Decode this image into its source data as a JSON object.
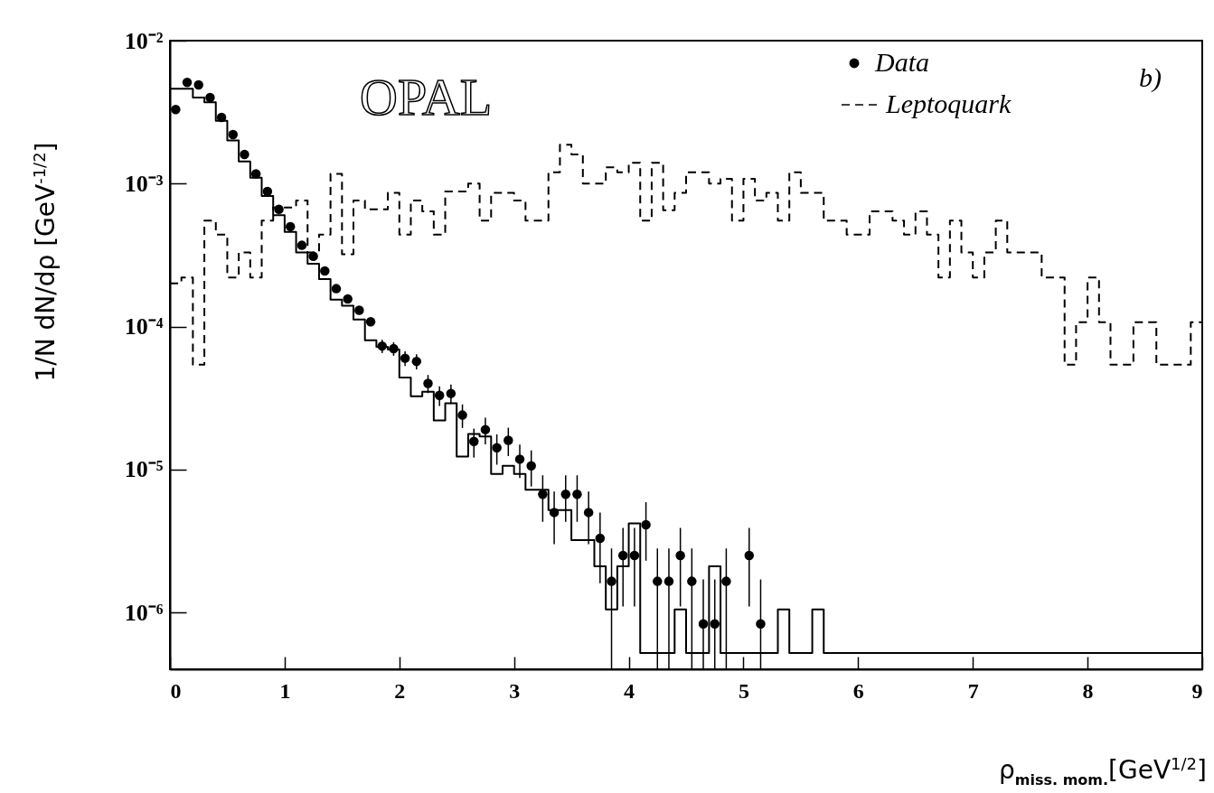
{
  "chart_data": {
    "type": "step",
    "xlabel": "ρ$_{miss. mom.}$[GeV$^{1/2}$]",
    "ylabel": "1/N dN/dρ  [GeV$^{-1/2}$]",
    "annotations": [
      "OPAL",
      "b)"
    ],
    "xlim": [
      0,
      9
    ],
    "xticks": [
      0,
      1,
      2,
      3,
      4,
      5,
      6,
      7,
      8,
      9
    ],
    "ylim": [
      4e-07,
      0.01
    ],
    "yticks": [
      {
        "value": 1e-06,
        "label": "10⁻⁶"
      },
      {
        "value": 1e-05,
        "label": "10⁻⁵"
      },
      {
        "value": 0.0001,
        "label": "10⁻⁴"
      },
      {
        "value": 0.001,
        "label": "10⁻³"
      },
      {
        "value": 0.01,
        "label": "10⁻²"
      }
    ],
    "log": true,
    "grid": false,
    "legend": "top right",
    "series": [
      {
        "name": "Data",
        "type": "scatter",
        "color": "#000000",
        "marker": "circle",
        "x": [
          0.05,
          0.15,
          0.25,
          0.35,
          0.45,
          0.55,
          0.65,
          0.75,
          0.85,
          0.95,
          1.05,
          1.15,
          1.25,
          1.35,
          1.45,
          1.55,
          1.65,
          1.75,
          1.85,
          1.95,
          2.05,
          2.15,
          2.25,
          2.35,
          2.45,
          2.55,
          2.65,
          2.75,
          2.85,
          2.95,
          3.05,
          3.15,
          3.25,
          3.35,
          3.45,
          3.55,
          3.65,
          3.75,
          3.85,
          3.95,
          4.05,
          4.15,
          4.25,
          4.35,
          4.45,
          4.55,
          4.65,
          4.75,
          4.85,
          5.05,
          5.15
        ],
        "values": [
          0.0033,
          0.0051,
          0.0049,
          0.004,
          0.0029,
          0.0022,
          0.0016,
          0.00117,
          0.00088,
          0.00066,
          0.0005,
          0.00037,
          0.00031,
          0.000245,
          0.000184,
          0.000156,
          0.00013,
          0.000108,
          7.3e-05,
          7e-05,
          6e-05,
          5.7e-05,
          4e-05,
          3.3e-05,
          3.4e-05,
          2.4e-05,
          1.57e-05,
          1.9e-05,
          1.42e-05,
          1.6e-05,
          1.18e-05,
          1.06e-05,
          6.7e-06,
          5e-06,
          6.7e-06,
          6.7e-06,
          5e-06,
          3.3e-06,
          1.65e-06,
          2.5e-06,
          2.5e-06,
          4.1e-06,
          1.65e-06,
          1.65e-06,
          2.5e-06,
          1.65e-06,
          8.3e-07,
          8.3e-07,
          1.65e-06,
          2.5e-06,
          8.3e-07
        ],
        "errors": [
          null,
          null,
          null,
          null,
          null,
          null,
          null,
          null,
          null,
          null,
          null,
          null,
          null,
          null,
          null,
          null,
          null,
          null,
          7.8e-06,
          7.6e-06,
          7.1e-06,
          6.9e-06,
          5.8e-06,
          5.2e-06,
          5.3e-06,
          4.5e-06,
          3.6e-06,
          4e-06,
          3.4e-06,
          3.6e-06,
          3.1e-06,
          3e-06,
          2.4e-06,
          2e-06,
          2.4e-06,
          2.4e-06,
          2e-06,
          1.7e-06,
          [
            4e-07,
            2.8e-06
          ],
          [
            1.1e-06,
            3.9e-06
          ],
          [
            1.1e-06,
            3.9e-06
          ],
          [
            2.3e-06,
            5.9e-06
          ],
          [
            4e-07,
            2.8e-06
          ],
          [
            4e-07,
            2.8e-06
          ],
          [
            1.1e-06,
            3.9e-06
          ],
          [
            4e-07,
            2.8e-06
          ],
          [
            4e-07,
            1.7e-06
          ],
          [
            4e-07,
            1.7e-06
          ],
          [
            4e-07,
            2.8e-06
          ],
          [
            1.1e-06,
            3.9e-06
          ],
          [
            4e-07,
            1.7e-06
          ]
        ]
      },
      {
        "color": "#000000",
        "line_style": "solid",
        "x": [
          0,
          0.1,
          0.2,
          0.3,
          0.4,
          0.5,
          0.6,
          0.7,
          0.8,
          0.9,
          1,
          1.1,
          1.2,
          1.3,
          1.4,
          1.5,
          1.6,
          1.7,
          1.8,
          1.9,
          2,
          2.1,
          2.2,
          2.3,
          2.4,
          2.5,
          2.6,
          2.7,
          2.8,
          2.9,
          3,
          3.1,
          3.2,
          3.3,
          3.4,
          3.5,
          3.6,
          3.7,
          3.8,
          3.9,
          4,
          4.1,
          4.2,
          4.3,
          4.4,
          4.5,
          4.6,
          4.7,
          4.8,
          4.9,
          5,
          5.1,
          5.2,
          5.3,
          5.4,
          5.5,
          5.6,
          5.7,
          5.8,
          5.9,
          6,
          6.1,
          6.2,
          6.3,
          6.4,
          6.5,
          6.6,
          6.7,
          6.8,
          6.9,
          7,
          7.1,
          7.2,
          7.3,
          7.4,
          7.5,
          7.6,
          7.7,
          7.8,
          7.9,
          8,
          8.1,
          8.2,
          8.3,
          8.4,
          8.5,
          8.6,
          8.7,
          8.8,
          8.9,
          9
        ],
        "values": [
          0.0046,
          0.0046,
          0.004,
          0.0037,
          0.00275,
          0.002,
          0.00143,
          0.0011,
          0.00082,
          0.0006,
          0.00046,
          0.00033,
          0.000275,
          0.000215,
          0.000154,
          0.00014,
          0.000112,
          8e-05,
          7.2e-05,
          6.9e-05,
          4.4e-05,
          3.25e-05,
          3.5e-05,
          2.2e-05,
          2.9e-05,
          1.23e-05,
          1.77e-05,
          1.7e-05,
          9.3e-06,
          1.06e-05,
          9.3e-06,
          7.2e-06,
          7.2e-06,
          5.2e-06,
          5.2e-06,
          3.2e-06,
          3.2e-06,
          2.1e-06,
          1.05e-06,
          2.1e-06,
          4.2e-06,
          5.2e-07,
          5.2e-07,
          5.2e-07,
          1.05e-06,
          5.2e-07,
          5.2e-07,
          2.1e-06,
          5.2e-07,
          5.2e-07,
          5.2e-07,
          5.2e-07,
          5.2e-07,
          1.05e-06,
          5.2e-07,
          5.2e-07,
          1.05e-06,
          5.2e-07,
          5.2e-07,
          5.2e-07,
          5.2e-07,
          5.2e-07,
          5.2e-07,
          5.2e-07,
          5.2e-07,
          5.2e-07,
          5.2e-07,
          5.2e-07,
          5.2e-07,
          5.2e-07,
          5.2e-07,
          5.2e-07,
          5.2e-07,
          5.2e-07,
          5.2e-07,
          5.2e-07,
          5.2e-07,
          5.2e-07,
          5.2e-07,
          5.2e-07,
          5.2e-07,
          5.2e-07,
          5.2e-07,
          5.2e-07,
          5.2e-07,
          5.2e-07,
          5.2e-07,
          5.2e-07,
          5.2e-07,
          5.2e-07,
          5.2e-07
        ]
      },
      {
        "name": "Leptoquark",
        "color": "#000000",
        "line_style": "dashed",
        "x": [
          0,
          0.1,
          0.2,
          0.3,
          0.4,
          0.5,
          0.6,
          0.7,
          0.8,
          0.9,
          1,
          1.1,
          1.2,
          1.3,
          1.4,
          1.5,
          1.6,
          1.7,
          1.8,
          1.9,
          2,
          2.1,
          2.2,
          2.3,
          2.4,
          2.5,
          2.6,
          2.7,
          2.8,
          2.9,
          3,
          3.1,
          3.2,
          3.3,
          3.4,
          3.5,
          3.6,
          3.7,
          3.8,
          3.9,
          4,
          4.1,
          4.2,
          4.3,
          4.4,
          4.5,
          4.6,
          4.7,
          4.8,
          4.9,
          5,
          5.1,
          5.2,
          5.3,
          5.4,
          5.5,
          5.6,
          5.7,
          5.8,
          5.9,
          6,
          6.1,
          6.2,
          6.3,
          6.4,
          6.5,
          6.6,
          6.7,
          6.8,
          6.9,
          7,
          7.1,
          7.2,
          7.3,
          7.4,
          7.5,
          7.6,
          7.7,
          7.8,
          7.9,
          8,
          8.1,
          8.2,
          8.3,
          8.4,
          8.5,
          8.6,
          8.7,
          8.8,
          8.9,
          9
        ],
        "values": [
          0.0002,
          0.00022,
          5.4e-05,
          0.00055,
          0.00044,
          0.00022,
          0.00033,
          0.00022,
          0.00055,
          0.00068,
          0.00068,
          0.00076,
          0.00033,
          0.00044,
          0.00117,
          0.00032,
          0.00076,
          0.00066,
          0.00066,
          0.00086,
          0.00044,
          0.00076,
          0.00064,
          0.00044,
          0.00088,
          0.00088,
          0.001,
          0.00055,
          0.00086,
          0.00086,
          0.00076,
          0.00055,
          0.00055,
          0.0012,
          0.00187,
          0.0016,
          0.001,
          0.001,
          0.0013,
          0.0012,
          0.0014,
          0.00055,
          0.0014,
          0.00065,
          0.00086,
          0.0012,
          0.0012,
          0.001,
          0.00108,
          0.00055,
          0.00108,
          0.00076,
          0.00086,
          0.00055,
          0.0012,
          0.00086,
          0.00086,
          0.00055,
          0.00055,
          0.00044,
          0.00044,
          0.00064,
          0.00064,
          0.00055,
          0.00044,
          0.00064,
          0.00044,
          0.00022,
          0.00055,
          0.00033,
          0.00022,
          0.00033,
          0.00055,
          0.00033,
          0.00033,
          0.00033,
          0.00022,
          0.00022,
          5.4e-05,
          0.000107,
          0.00022,
          0.000107,
          5.4e-05,
          5.4e-05,
          0.000107,
          0.000107,
          5.4e-05,
          5.4e-05,
          5.4e-05,
          0.000107,
          0.000107
        ]
      }
    ]
  }
}
